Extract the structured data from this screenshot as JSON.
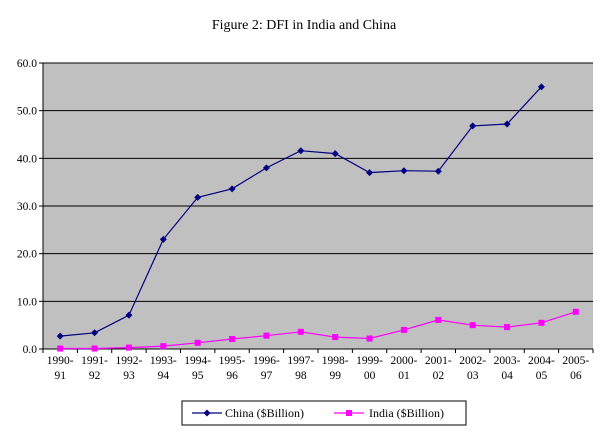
{
  "chart_data": {
    "type": "line",
    "title": "Figure 2: DFI in India and China",
    "xlabel": "",
    "ylabel": "",
    "categories": [
      [
        "1990-",
        "91"
      ],
      [
        "1991-",
        "92"
      ],
      [
        "1992-",
        "93"
      ],
      [
        "1993-",
        "94"
      ],
      [
        "1994-",
        "95"
      ],
      [
        "1995-",
        "96"
      ],
      [
        "1996-",
        "97"
      ],
      [
        "1997-",
        "98"
      ],
      [
        "1998-",
        "99"
      ],
      [
        "1999-",
        "00"
      ],
      [
        "2000-",
        "01"
      ],
      [
        "2001-",
        "02"
      ],
      [
        "2002-",
        "03"
      ],
      [
        "2003-",
        "04"
      ],
      [
        "2004-",
        "05"
      ],
      [
        "2005-",
        "06"
      ]
    ],
    "ylim": [
      0,
      60
    ],
    "yticks": [
      "0.0",
      "10.0",
      "20.0",
      "30.0",
      "40.0",
      "50.0",
      "60.0"
    ],
    "grid": true,
    "plot_background": "#c0c0c0",
    "legend_position": "bottom",
    "series": [
      {
        "name": "China ($Billion)",
        "color": "#000080",
        "marker": "diamond",
        "values": [
          2.7,
          3.4,
          7.1,
          23.0,
          31.8,
          33.6,
          38.0,
          41.6,
          41.0,
          37.0,
          37.4,
          37.3,
          46.8,
          47.2,
          55.0,
          null
        ]
      },
      {
        "name": "India ($Billion)",
        "color": "#ff00ff",
        "marker": "square",
        "values": [
          0.1,
          0.1,
          0.3,
          0.6,
          1.3,
          2.1,
          2.8,
          3.6,
          2.5,
          2.2,
          4.0,
          6.1,
          5.0,
          4.6,
          5.5,
          7.8
        ]
      }
    ]
  }
}
